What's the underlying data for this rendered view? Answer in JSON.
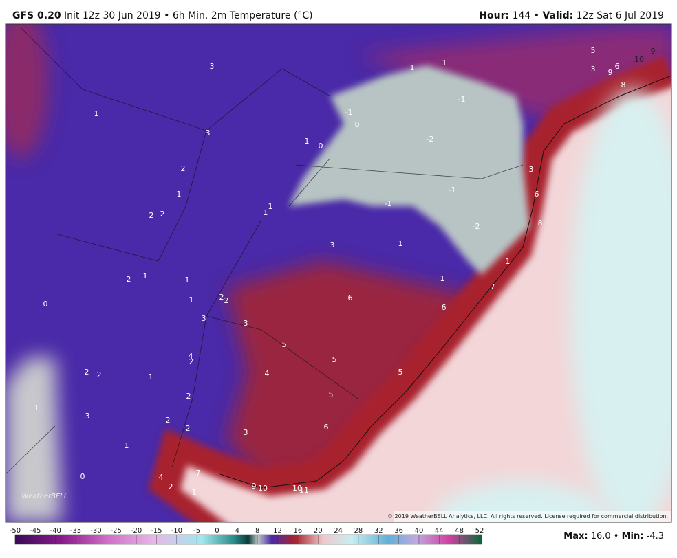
{
  "header": {
    "model": "GFS 0.20",
    "description": "Init 12z 30 Jun 2019 • 6h Min. 2m Temperature (°C)",
    "hour_label": "Hour:",
    "hour_value": "144 •",
    "valid_label": "Valid:",
    "valid_value": "12z Sat 6 Jul 2019"
  },
  "map": {
    "labels": [
      "3",
      "1",
      "3",
      "2",
      "1",
      "2",
      "2",
      "2",
      "1",
      "1",
      "1",
      "2",
      "2",
      "3",
      "0",
      "3",
      "5",
      "5",
      "4",
      "4",
      "2",
      "2",
      "2",
      "1",
      "2",
      "5",
      "1",
      "3",
      "2",
      "2",
      "3",
      "6",
      "1",
      "0",
      "7",
      "4",
      "2",
      "1",
      "9",
      "10",
      "10",
      "11",
      "3",
      "1",
      "6",
      "1",
      "6",
      "7",
      "1",
      "5",
      "-2",
      "-1",
      "-2",
      "-1",
      "-1",
      "0",
      "-1",
      "1",
      "0",
      "1",
      "1",
      "1",
      "1",
      "3",
      "6",
      "8",
      "5",
      "3",
      "6",
      "9",
      "10",
      "9",
      "8"
    ],
    "logo": "WeatherBELL",
    "copyright": "© 2019 WeatherBELL Analytics, LLC. All rights reserved. License required for commercial distribution."
  },
  "colorbar": {
    "ticks": [
      -50,
      -45,
      -40,
      -35,
      -30,
      -25,
      -20,
      -15,
      -10,
      -5,
      0,
      4,
      8,
      12,
      16,
      20,
      24,
      28,
      32,
      36,
      40,
      44,
      48,
      52
    ]
  },
  "footer": {
    "max_label": "Max:",
    "max_value": "16.0 •",
    "min_label": "Min:",
    "min_value": "-4.3"
  }
}
